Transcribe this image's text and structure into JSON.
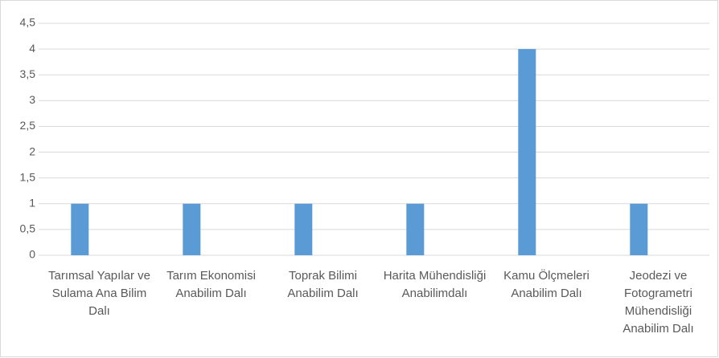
{
  "chart_data": {
    "type": "bar",
    "categories": [
      "Tarımsal Yapılar ve Sulama Ana Bilim Dalı",
      "Tarım Ekonomisi Anabilim Dalı",
      "Toprak Bilimi Anabilim Dalı",
      "Harita Mühendisliği Anabilimdalı",
      "Kamu Ölçmeleri Anabilim Dalı",
      "Jeodezi ve Fotogrametri Mühendisliği Anabilim Dalı"
    ],
    "values": [
      1,
      1,
      1,
      1,
      4,
      1
    ],
    "color": "#5b9bd5",
    "ylim": [
      0,
      4.5
    ],
    "yticks": [
      0,
      {
        "value": 0.5,
        "label": "0,5"
      },
      1,
      {
        "value": 1.5,
        "label": "1,5"
      },
      2,
      {
        "value": 2.5,
        "label": "2,5"
      },
      3,
      {
        "value": 3.5,
        "label": "3,5"
      },
      4,
      {
        "value": 4.5,
        "label": "4,5"
      }
    ],
    "grid": true
  }
}
